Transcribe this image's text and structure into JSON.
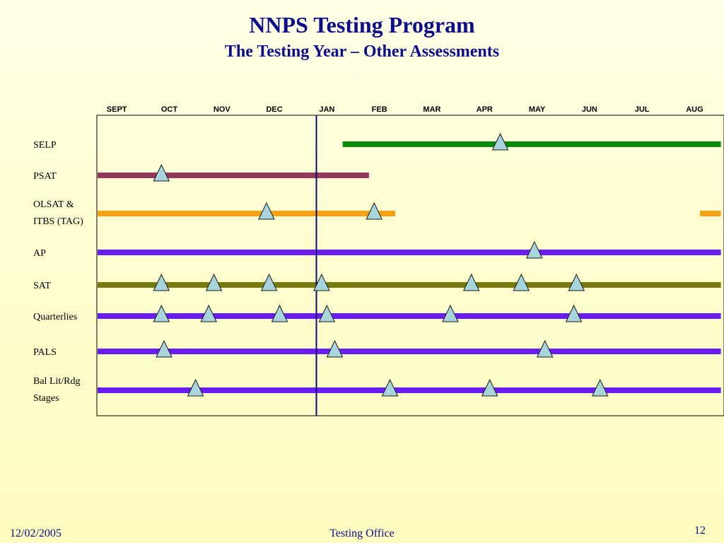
{
  "slide": {
    "title": "NNPS Testing Program",
    "subtitle": "The Testing Year – Other Assessments",
    "footer_date": "12/02/2005",
    "footer_center": "Testing Office",
    "page_number": "12"
  },
  "colors": {
    "title": "#0c0c8c",
    "cutoff_line": "#0a0a6e",
    "marker_fill": "#a8d4dc",
    "marker_stroke": "#1a1a1a"
  },
  "chart_data": {
    "type": "timeline",
    "months": [
      "SEPT",
      "OCT",
      "NOV",
      "DEC",
      "JAN",
      "FEB",
      "MAR",
      "APR",
      "MAY",
      "JUN",
      "JUL",
      "AUG"
    ],
    "time_units": "months from start of SEPT (0 = SEPT start, 12 = AUG end)",
    "cutoff_line": 4.3,
    "rows": [
      {
        "name": "SELP",
        "label_lines": [
          "SELP"
        ],
        "color": "#0a8a0a",
        "bars": [
          [
            4.8,
            12.0
          ]
        ],
        "markers": [
          7.8
        ]
      },
      {
        "name": "PSAT",
        "label_lines": [
          "PSAT"
        ],
        "color": "#95395f",
        "bars": [
          [
            0.0,
            5.3
          ]
        ],
        "markers": [
          1.35
        ]
      },
      {
        "name": "OLSAT & ITBS (TAG)",
        "label_lines": [
          "OLSAT &",
          "ITBS (TAG)"
        ],
        "color": "#f4a012",
        "bars": [
          [
            0.0,
            5.8
          ],
          [
            11.6,
            12.0
          ]
        ],
        "markers": [
          3.35,
          5.4
        ]
      },
      {
        "name": "AP",
        "label_lines": [
          "AP"
        ],
        "color": "#6a1df0",
        "bars": [
          [
            0.0,
            12.0
          ]
        ],
        "markers": [
          8.45
        ]
      },
      {
        "name": "SAT",
        "label_lines": [
          "SAT"
        ],
        "color": "#7a7a0c",
        "bars": [
          [
            0.0,
            12.0
          ]
        ],
        "markers": [
          1.35,
          2.35,
          3.4,
          4.4,
          7.25,
          8.2,
          9.25
        ]
      },
      {
        "name": "Quarterlies",
        "label_lines": [
          "Quarterlies"
        ],
        "color": "#6a1df0",
        "bars": [
          [
            0.0,
            12.0
          ]
        ],
        "markers": [
          1.35,
          2.25,
          3.6,
          4.5,
          6.85,
          9.2
        ]
      },
      {
        "name": "PALS",
        "label_lines": [
          "PALS"
        ],
        "color": "#6a1df0",
        "bars": [
          [
            0.0,
            12.0
          ]
        ],
        "markers": [
          1.4,
          4.65,
          8.65
        ]
      },
      {
        "name": "Bal Lit/Rdg Stages",
        "label_lines": [
          "Bal Lit/Rdg",
          "Stages"
        ],
        "color": "#6a1df0",
        "bars": [
          [
            0.0,
            12.0
          ]
        ],
        "markers": [
          2.0,
          5.7,
          7.6,
          9.7
        ]
      }
    ]
  }
}
